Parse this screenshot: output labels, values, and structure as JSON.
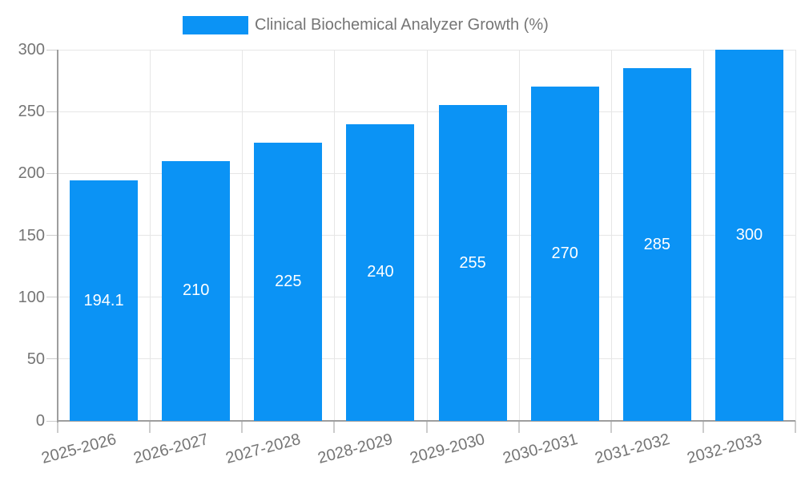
{
  "chart_data": {
    "type": "bar",
    "title": "Clinical Biochemical Analyzer Growth (%)",
    "categories": [
      "2025-2026",
      "2026-2027",
      "2027-2028",
      "2028-2029",
      "2029-2030",
      "2030-2031",
      "2031-2032",
      "2032-2033"
    ],
    "values": [
      194.1,
      210,
      225,
      240,
      255,
      270,
      285,
      300
    ],
    "value_labels": [
      "194.1",
      "210",
      "225",
      "240",
      "255",
      "270",
      "285",
      "300"
    ],
    "xlabel": "",
    "ylabel": "",
    "ylim": [
      0,
      300
    ],
    "yticks": [
      0,
      50,
      100,
      150,
      200,
      250,
      300
    ],
    "grid": true,
    "legend_position": "top",
    "colors": {
      "bar": "#0b93f5",
      "bar_label": "#ffffff",
      "axis_text": "#757575",
      "gridline": "#e6e6e6",
      "axis_line": "#9e9e9e",
      "tick_mark": "#cccccc",
      "background": "#ffffff"
    }
  }
}
